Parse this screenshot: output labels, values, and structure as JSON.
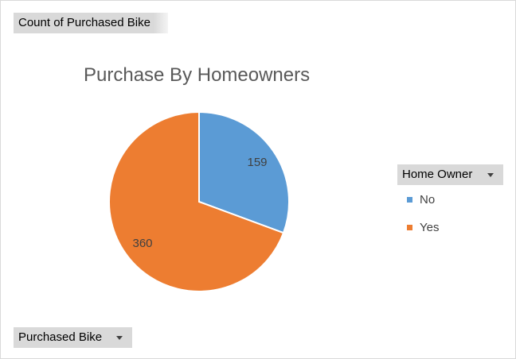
{
  "pivot": {
    "value_field": "Count of Purchased Bike",
    "axis_field": "Purchased Bike",
    "legend_field": "Home Owner"
  },
  "chart_data": {
    "type": "pie",
    "title": "Purchase By Homeowners",
    "categories": [
      "No",
      "Yes"
    ],
    "values": [
      159,
      360
    ],
    "colors": [
      "#5b9bd5",
      "#ed7d31"
    ],
    "legend_title": "Home Owner",
    "legend_position": "right",
    "data_labels": [
      "159",
      "360"
    ]
  }
}
